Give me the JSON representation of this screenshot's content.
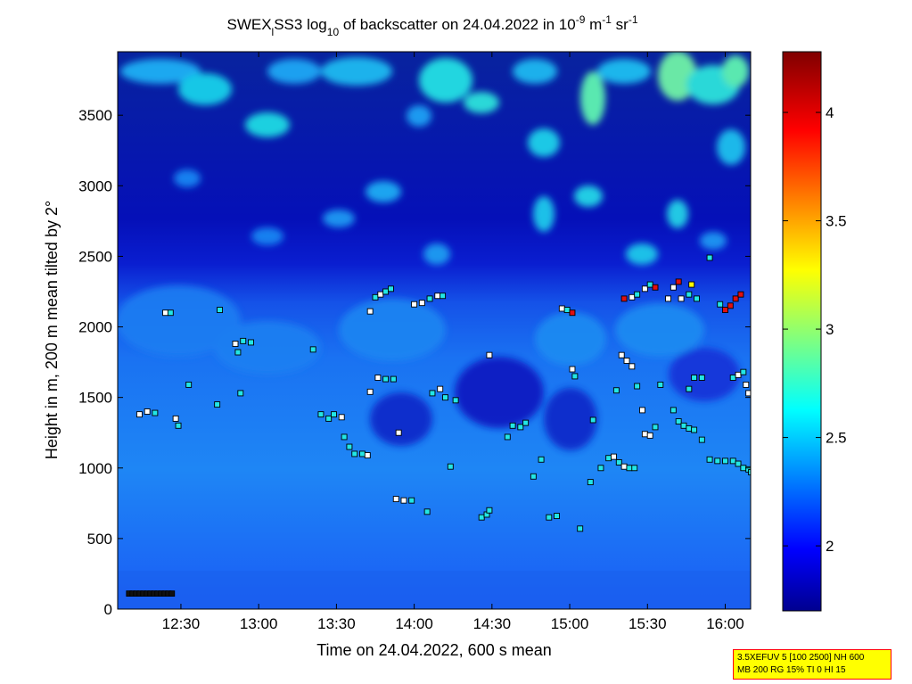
{
  "chart_data": {
    "type": "heatmap",
    "title": {
      "prefix": "SWEX",
      "sub1": "l",
      "mid": "SS3 log",
      "sub2": "10",
      "suffix": " of backscatter on 24.04.2022 in 10",
      "sup1": "-9",
      "unit1": " m",
      "sup2": "-1",
      "unit2": " sr",
      "sup3": "-1"
    },
    "xlabel": "Time on 24.04.2022, 600 s mean",
    "ylabel": "Height in m, 200 m mean tilted by 2°",
    "x_ticks": [
      "12:30",
      "13:00",
      "13:30",
      "14:00",
      "14:30",
      "15:00",
      "15:30",
      "16:00"
    ],
    "y_ticks": [
      "0",
      "500",
      "1000",
      "1500",
      "2000",
      "2500",
      "3000",
      "3500"
    ],
    "ylim": [
      0,
      3950
    ],
    "colorbar": {
      "range": [
        1.7,
        4.28
      ],
      "ticks": [
        "2",
        "2.5",
        "3",
        "3.5",
        "4"
      ],
      "colormap": "jet"
    },
    "field_description": "log10 backscatter, low (about 2.3-2.5) below 2000 m, cloud/aerosol patches up to about 3 above 2500 m",
    "markers": {
      "legend_colors": [
        "#ffffff",
        "#00e0e0",
        "#000000",
        "#e00000",
        "#ffff00"
      ],
      "points": [
        {
          "t": "12:14",
          "h": 1380,
          "c": "w"
        },
        {
          "t": "12:17",
          "h": 1400,
          "c": "w"
        },
        {
          "t": "12:20",
          "h": 1390,
          "c": "c"
        },
        {
          "t": "12:24",
          "h": 2100,
          "c": "w"
        },
        {
          "t": "12:26",
          "h": 2100,
          "c": "c"
        },
        {
          "t": "12:28",
          "h": 1350,
          "c": "w"
        },
        {
          "t": "12:29",
          "h": 1300,
          "c": "c"
        },
        {
          "t": "12:33",
          "h": 1590,
          "c": "c"
        },
        {
          "t": "12:44",
          "h": 1450,
          "c": "c"
        },
        {
          "t": "12:45",
          "h": 2120,
          "c": "c"
        },
        {
          "t": "12:51",
          "h": 1880,
          "c": "w"
        },
        {
          "t": "12:52",
          "h": 1820,
          "c": "c"
        },
        {
          "t": "12:54",
          "h": 1900,
          "c": "c"
        },
        {
          "t": "12:57",
          "h": 1890,
          "c": "c"
        },
        {
          "t": "12:53",
          "h": 1530,
          "c": "c"
        },
        {
          "t": "13:21",
          "h": 1840,
          "c": "c"
        },
        {
          "t": "13:24",
          "h": 1380,
          "c": "c"
        },
        {
          "t": "13:27",
          "h": 1350,
          "c": "c"
        },
        {
          "t": "13:29",
          "h": 1380,
          "c": "c"
        },
        {
          "t": "13:32",
          "h": 1360,
          "c": "w"
        },
        {
          "t": "13:33",
          "h": 1220,
          "c": "c"
        },
        {
          "t": "13:35",
          "h": 1150,
          "c": "c"
        },
        {
          "t": "13:37",
          "h": 1100,
          "c": "c"
        },
        {
          "t": "13:40",
          "h": 1100,
          "c": "c"
        },
        {
          "t": "13:42",
          "h": 1090,
          "c": "w"
        },
        {
          "t": "13:43",
          "h": 2110,
          "c": "w"
        },
        {
          "t": "13:45",
          "h": 2210,
          "c": "c"
        },
        {
          "t": "13:47",
          "h": 2230,
          "c": "w"
        },
        {
          "t": "13:49",
          "h": 2250,
          "c": "c"
        },
        {
          "t": "13:51",
          "h": 2270,
          "c": "c"
        },
        {
          "t": "13:43",
          "h": 1540,
          "c": "w"
        },
        {
          "t": "13:46",
          "h": 1640,
          "c": "w"
        },
        {
          "t": "13:49",
          "h": 1630,
          "c": "c"
        },
        {
          "t": "13:52",
          "h": 1630,
          "c": "c"
        },
        {
          "t": "13:54",
          "h": 1250,
          "c": "w"
        },
        {
          "t": "13:53",
          "h": 780,
          "c": "w"
        },
        {
          "t": "13:56",
          "h": 770,
          "c": "w"
        },
        {
          "t": "13:59",
          "h": 770,
          "c": "c"
        },
        {
          "t": "14:00",
          "h": 2160,
          "c": "w"
        },
        {
          "t": "14:03",
          "h": 2170,
          "c": "w"
        },
        {
          "t": "14:06",
          "h": 2200,
          "c": "c"
        },
        {
          "t": "14:09",
          "h": 2220,
          "c": "w"
        },
        {
          "t": "14:11",
          "h": 2220,
          "c": "c"
        },
        {
          "t": "14:07",
          "h": 1530,
          "c": "c"
        },
        {
          "t": "14:10",
          "h": 1560,
          "c": "w"
        },
        {
          "t": "14:12",
          "h": 1500,
          "c": "c"
        },
        {
          "t": "14:16",
          "h": 1480,
          "c": "c"
        },
        {
          "t": "14:14",
          "h": 1010,
          "c": "c"
        },
        {
          "t": "14:05",
          "h": 690,
          "c": "c"
        },
        {
          "t": "14:29",
          "h": 1800,
          "c": "w"
        },
        {
          "t": "14:26",
          "h": 650,
          "c": "c"
        },
        {
          "t": "14:28",
          "h": 670,
          "c": "c"
        },
        {
          "t": "14:29",
          "h": 700,
          "c": "c"
        },
        {
          "t": "14:36",
          "h": 1220,
          "c": "c"
        },
        {
          "t": "14:38",
          "h": 1300,
          "c": "c"
        },
        {
          "t": "14:41",
          "h": 1290,
          "c": "c"
        },
        {
          "t": "14:43",
          "h": 1320,
          "c": "c"
        },
        {
          "t": "14:46",
          "h": 940,
          "c": "c"
        },
        {
          "t": "14:49",
          "h": 1060,
          "c": "c"
        },
        {
          "t": "14:52",
          "h": 650,
          "c": "c"
        },
        {
          "t": "14:55",
          "h": 660,
          "c": "c"
        },
        {
          "t": "14:57",
          "h": 2130,
          "c": "w"
        },
        {
          "t": "14:59",
          "h": 2120,
          "c": "c"
        },
        {
          "t": "15:01",
          "h": 2100,
          "c": "r"
        },
        {
          "t": "15:01",
          "h": 1700,
          "c": "w"
        },
        {
          "t": "15:02",
          "h": 1650,
          "c": "c"
        },
        {
          "t": "15:04",
          "h": 570,
          "c": "c"
        },
        {
          "t": "15:08",
          "h": 900,
          "c": "c"
        },
        {
          "t": "15:09",
          "h": 1340,
          "c": "c"
        },
        {
          "t": "15:12",
          "h": 1000,
          "c": "c"
        },
        {
          "t": "15:15",
          "h": 1070,
          "c": "c"
        },
        {
          "t": "15:17",
          "h": 1080,
          "c": "w"
        },
        {
          "t": "15:19",
          "h": 1040,
          "c": "c"
        },
        {
          "t": "15:21",
          "h": 1010,
          "c": "w"
        },
        {
          "t": "15:23",
          "h": 1000,
          "c": "c"
        },
        {
          "t": "15:25",
          "h": 1000,
          "c": "c"
        },
        {
          "t": "15:18",
          "h": 1550,
          "c": "c"
        },
        {
          "t": "15:20",
          "h": 1800,
          "c": "w"
        },
        {
          "t": "15:22",
          "h": 1760,
          "c": "w"
        },
        {
          "t": "15:24",
          "h": 1720,
          "c": "w"
        },
        {
          "t": "15:26",
          "h": 1580,
          "c": "c"
        },
        {
          "t": "15:21",
          "h": 2200,
          "c": "r"
        },
        {
          "t": "15:24",
          "h": 2210,
          "c": "w"
        },
        {
          "t": "15:26",
          "h": 2230,
          "c": "c"
        },
        {
          "t": "15:29",
          "h": 2270,
          "c": "w"
        },
        {
          "t": "15:31",
          "h": 2300,
          "c": "c"
        },
        {
          "t": "15:33",
          "h": 2280,
          "c": "r"
        },
        {
          "t": "15:28",
          "h": 1410,
          "c": "w"
        },
        {
          "t": "15:29",
          "h": 1240,
          "c": "w"
        },
        {
          "t": "15:31",
          "h": 1230,
          "c": "w"
        },
        {
          "t": "15:33",
          "h": 1290,
          "c": "c"
        },
        {
          "t": "15:35",
          "h": 1590,
          "c": "c"
        },
        {
          "t": "15:38",
          "h": 2200,
          "c": "w"
        },
        {
          "t": "15:40",
          "h": 2280,
          "c": "w"
        },
        {
          "t": "15:42",
          "h": 2320,
          "c": "r"
        },
        {
          "t": "15:43",
          "h": 2200,
          "c": "w"
        },
        {
          "t": "15:46",
          "h": 2230,
          "c": "c"
        },
        {
          "t": "15:47",
          "h": 2300,
          "c": "y"
        },
        {
          "t": "15:49",
          "h": 2200,
          "c": "c"
        },
        {
          "t": "15:40",
          "h": 1410,
          "c": "c"
        },
        {
          "t": "15:42",
          "h": 1330,
          "c": "c"
        },
        {
          "t": "15:44",
          "h": 1300,
          "c": "c"
        },
        {
          "t": "15:46",
          "h": 1280,
          "c": "c"
        },
        {
          "t": "15:48",
          "h": 1270,
          "c": "c"
        },
        {
          "t": "15:51",
          "h": 1200,
          "c": "c"
        },
        {
          "t": "15:46",
          "h": 1560,
          "c": "c"
        },
        {
          "t": "15:48",
          "h": 1640,
          "c": "c"
        },
        {
          "t": "15:51",
          "h": 1640,
          "c": "c"
        },
        {
          "t": "15:54",
          "h": 2490,
          "c": "c"
        },
        {
          "t": "15:54",
          "h": 1060,
          "c": "c"
        },
        {
          "t": "15:57",
          "h": 1050,
          "c": "c"
        },
        {
          "t": "16:00",
          "h": 1050,
          "c": "c"
        },
        {
          "t": "16:03",
          "h": 1050,
          "c": "c"
        },
        {
          "t": "16:05",
          "h": 1030,
          "c": "c"
        },
        {
          "t": "16:07",
          "h": 1000,
          "c": "c"
        },
        {
          "t": "16:09",
          "h": 990,
          "c": "c"
        },
        {
          "t": "16:10",
          "h": 970,
          "c": "c"
        },
        {
          "t": "15:58",
          "h": 2160,
          "c": "c"
        },
        {
          "t": "16:00",
          "h": 2120,
          "c": "r"
        },
        {
          "t": "16:02",
          "h": 2150,
          "c": "r"
        },
        {
          "t": "16:04",
          "h": 2200,
          "c": "r"
        },
        {
          "t": "16:06",
          "h": 2230,
          "c": "r"
        },
        {
          "t": "16:03",
          "h": 1640,
          "c": "c"
        },
        {
          "t": "16:05",
          "h": 1660,
          "c": "w"
        },
        {
          "t": "16:07",
          "h": 1680,
          "c": "c"
        },
        {
          "t": "16:08",
          "h": 1590,
          "c": "w"
        },
        {
          "t": "16:09",
          "h": 1530,
          "c": "w"
        }
      ],
      "bottom_line": {
        "from": "12:10",
        "to": "12:27",
        "h": 110
      }
    }
  },
  "info_box": {
    "line1": "3.5XEFUV 5 [100 2500] NH 600",
    "line2": "MB 200 RG 15% TI 0 HI 15"
  }
}
